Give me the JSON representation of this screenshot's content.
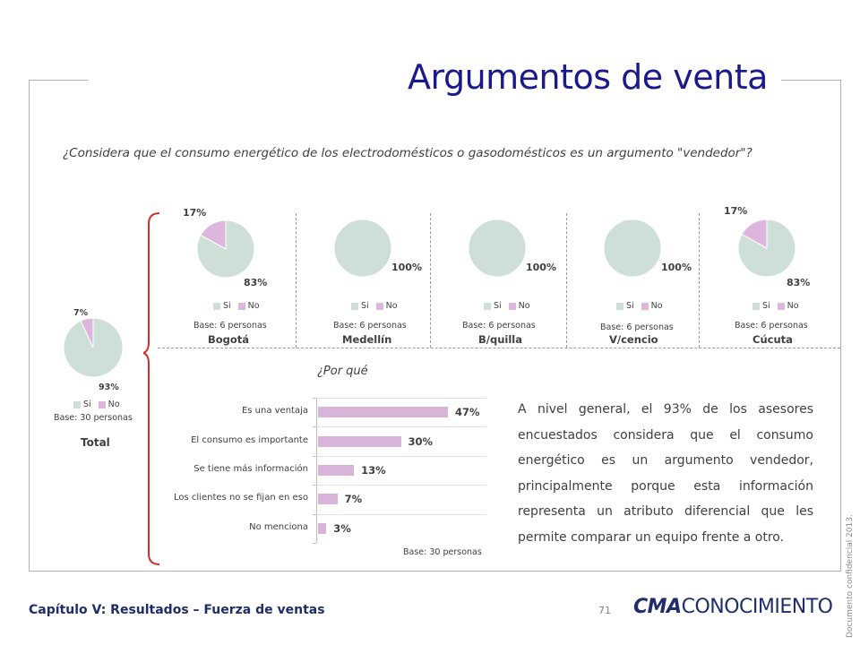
{
  "title": "Argumentos de venta",
  "question": "¿Considera que el consumo energético de los electrodomésticos o gasodomésticos es un argumento \"vendedor\"?",
  "colors": {
    "si": "#cddfd6",
    "no": "#dcb6dc",
    "title": "#1a1a8c",
    "bracket": "#d0302a",
    "bar": "#d8b4d8"
  },
  "legend": {
    "si": "Si",
    "no": "No"
  },
  "chart_data": [
    {
      "type": "pie",
      "title": "Total",
      "base": "Base: 30 personas",
      "slices": [
        {
          "name": "Si",
          "value": 93,
          "label": "93%"
        },
        {
          "name": "No",
          "value": 7,
          "label": "7%"
        }
      ]
    },
    {
      "type": "pie",
      "title": "Bogotá",
      "base": "Base: 6 personas",
      "slices": [
        {
          "name": "Si",
          "value": 83,
          "label": "83%"
        },
        {
          "name": "No",
          "value": 17,
          "label": "17%"
        }
      ]
    },
    {
      "type": "pie",
      "title": "Medellín",
      "base": "Base: 6 personas",
      "slices": [
        {
          "name": "Si",
          "value": 100,
          "label": "100%"
        },
        {
          "name": "No",
          "value": 0,
          "label": ""
        }
      ]
    },
    {
      "type": "pie",
      "title": "B/quilla",
      "base": "Base: 6 personas",
      "slices": [
        {
          "name": "Si",
          "value": 100,
          "label": "100%"
        },
        {
          "name": "No",
          "value": 0,
          "label": ""
        }
      ]
    },
    {
      "type": "pie",
      "title": "V/cencio",
      "base": "Base: 6 personas",
      "slices": [
        {
          "name": "Si",
          "value": 100,
          "label": "100%"
        },
        {
          "name": "No",
          "value": 0,
          "label": ""
        }
      ]
    },
    {
      "type": "pie",
      "title": "Cúcuta",
      "base": "Base: 6 personas",
      "slices": [
        {
          "name": "Si",
          "value": 83,
          "label": "83%"
        },
        {
          "name": "No",
          "value": 17,
          "label": "17%"
        }
      ]
    },
    {
      "type": "bar",
      "title": "¿Por qué",
      "orientation": "horizontal",
      "categories": [
        "Es una ventaja",
        "El consumo es importante",
        "Se tiene más información",
        "Los clientes no se fijan en eso",
        "No menciona"
      ],
      "values": [
        47,
        30,
        13,
        7,
        3
      ],
      "value_labels": [
        "47%",
        "30%",
        "13%",
        "7%",
        "3%"
      ],
      "base": "Base: 30 personas"
    }
  ],
  "body_text": "A nivel general, el 93% de los asesores encuestados considera que el consumo energético es un argumento vendedor, principalmente porque esta información representa un atributo diferencial que les permite comparar un equipo frente a otro.",
  "footer": {
    "chapter": "Capítulo V: Resultados – Fuerza de ventas",
    "page": "71",
    "logo_bold": "CMA",
    "logo_rest": "CONOCIMIENTO",
    "confidential": "Documento confidencial 2013."
  }
}
